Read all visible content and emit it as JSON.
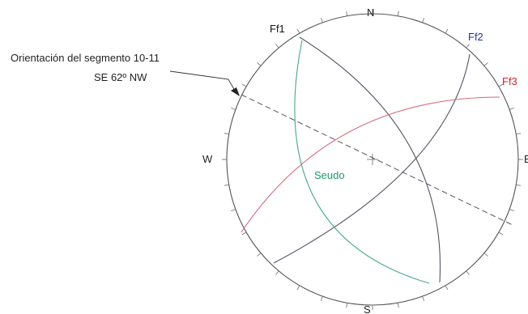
{
  "annotation": {
    "line1": "Orientación del segmento 10-11",
    "line2": "SE 62º NW"
  },
  "compass": {
    "north": "N",
    "south": "S",
    "east": "E",
    "west": "W"
  },
  "planes": [
    {
      "label": "Ff1",
      "color": "#444444"
    },
    {
      "label": "Ff2",
      "color": "#2b2f9e"
    },
    {
      "label": "Ff3",
      "color": "#d2232a"
    }
  ],
  "seudo": {
    "label": "Seudo",
    "color": "#1c9a68"
  },
  "colors": {
    "circle": "#555555",
    "ff1_line": "#555566",
    "ff2_line": "#555566",
    "ff3_line": "#d46a7e",
    "seudo_line": "#4aa887",
    "segment_line": "#555555"
  }
}
